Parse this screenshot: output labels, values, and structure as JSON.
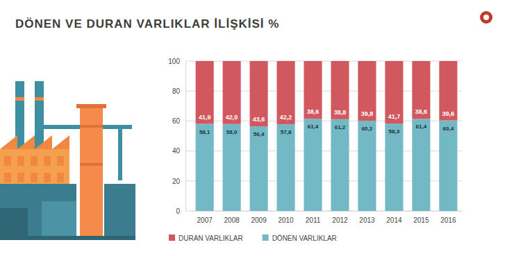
{
  "chart_data": {
    "type": "bar",
    "title": "DÖNEN VE DURAN VARLIKLAR İLİŞKİSİ %",
    "categories": [
      "2007",
      "2008",
      "2009",
      "2010",
      "2011",
      "2012",
      "2013",
      "2014",
      "2015",
      "2016"
    ],
    "series": [
      {
        "name": "DÖNEN VARLIKLAR",
        "color": "#73b8c5",
        "values": [
          58.1,
          58.0,
          56.4,
          57.8,
          61.4,
          61.2,
          60.2,
          58.3,
          61.4,
          60.4
        ],
        "value_labels": [
          "58,1",
          "58,0",
          "56,4",
          "57,8",
          "61,4",
          "61,2",
          "60,2",
          "58,3",
          "61,4",
          "60,4"
        ]
      },
      {
        "name": "DURAN VARLIKLAR",
        "color": "#d1585e",
        "values": [
          41.9,
          42.0,
          43.6,
          42.2,
          38.6,
          38.8,
          39.8,
          41.7,
          38.6,
          39.6
        ],
        "value_labels": [
          "41,9",
          "42,0",
          "43,6",
          "42,2",
          "38,6",
          "38,8",
          "39,8",
          "41,7",
          "38,6",
          "39,6"
        ]
      }
    ],
    "ylim": [
      0,
      100
    ],
    "yticks": [
      0,
      20,
      40,
      60,
      80,
      100
    ],
    "grid": true,
    "stacked": true,
    "data_labels": true,
    "legend": "bottom"
  }
}
